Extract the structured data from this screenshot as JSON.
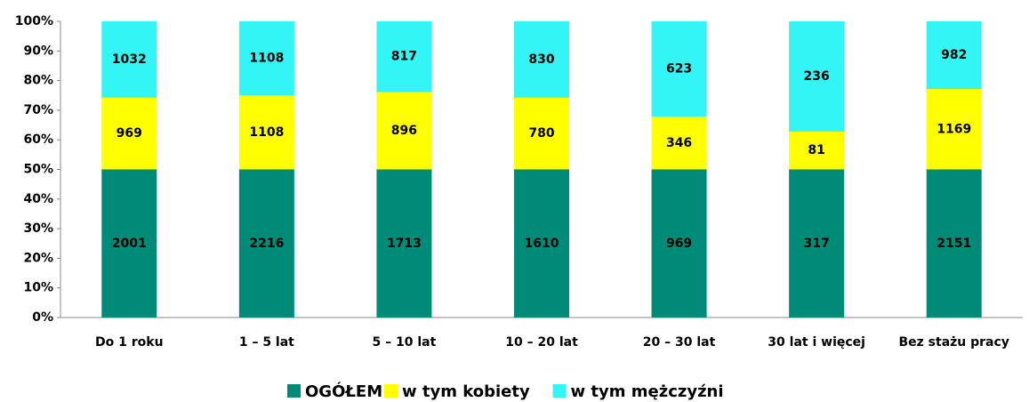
{
  "chart_data": {
    "type": "bar",
    "stacking": "percent",
    "categories": [
      "Do 1 roku",
      "1 – 5 lat",
      "5 – 10 lat",
      "10 – 20 lat",
      "20 – 30 lat",
      "30 lat i więcej",
      "Bez stażu pracy"
    ],
    "series": [
      {
        "name": "OGÓŁEM",
        "color": "#008a78",
        "values": [
          2001,
          2216,
          1713,
          1610,
          969,
          317,
          2151
        ]
      },
      {
        "name": "w tym kobiety",
        "color": "#ffff00",
        "values": [
          969,
          1108,
          896,
          780,
          346,
          81,
          1169
        ]
      },
      {
        "name": "w tym mężczyźni",
        "color": "#33f5f5",
        "values": [
          1032,
          1108,
          817,
          830,
          623,
          236,
          982
        ]
      }
    ],
    "ylim": [
      0,
      100
    ],
    "yticks": [
      {
        "value": 0,
        "label": "0%"
      },
      {
        "value": 10,
        "label": "10%"
      },
      {
        "value": 20,
        "label": "20%"
      },
      {
        "value": 30,
        "label": "30%"
      },
      {
        "value": 40,
        "label": "40%"
      },
      {
        "value": 50,
        "label": "50%"
      },
      {
        "value": 60,
        "label": "60%"
      },
      {
        "value": 70,
        "label": "70%"
      },
      {
        "value": 80,
        "label": "80%"
      },
      {
        "value": 90,
        "label": "90%"
      },
      {
        "value": 100,
        "label": "100%"
      }
    ],
    "legend": "bottom",
    "grid": false
  }
}
